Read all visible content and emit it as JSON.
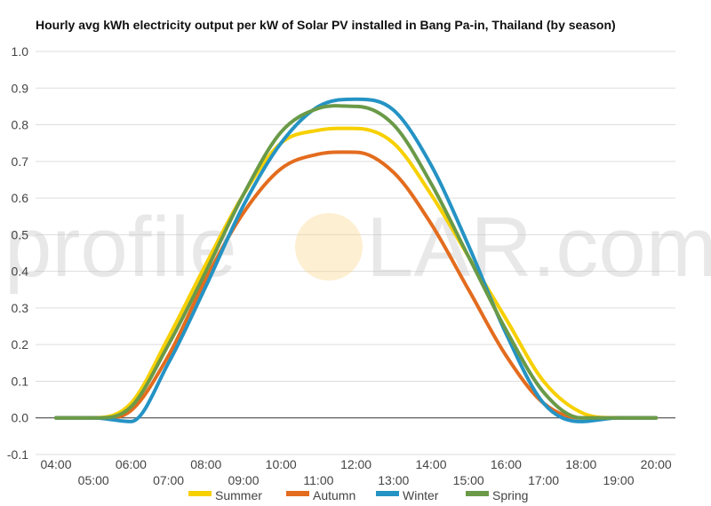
{
  "chart_data": {
    "type": "line",
    "title": "Hourly avg kWh electricity output per kW of Solar PV installed in Bang Pa-in, Thailand (by season)",
    "xlabel": "",
    "ylabel": "",
    "ylim": [
      -0.1,
      1.0
    ],
    "y_ticks": [
      "-0.1",
      "0.0",
      "0.1",
      "0.2",
      "0.3",
      "0.4",
      "0.5",
      "0.6",
      "0.7",
      "0.8",
      "0.9",
      "1.0"
    ],
    "categories": [
      "04:00",
      "05:00",
      "06:00",
      "07:00",
      "08:00",
      "09:00",
      "10:00",
      "11:00",
      "12:00",
      "13:00",
      "14:00",
      "15:00",
      "16:00",
      "17:00",
      "18:00",
      "19:00",
      "20:00"
    ],
    "grid": true,
    "legend_position": "bottom",
    "series": [
      {
        "name": "Summer",
        "color": "#f7d000",
        "values": [
          0.0,
          0.0,
          0.04,
          0.22,
          0.42,
          0.61,
          0.75,
          0.785,
          0.79,
          0.75,
          0.61,
          0.44,
          0.27,
          0.1,
          0.015,
          0.0,
          0.0
        ]
      },
      {
        "name": "Autumn",
        "color": "#e36c1e",
        "values": [
          0.0,
          0.0,
          0.02,
          0.17,
          0.38,
          0.56,
          0.68,
          0.72,
          0.725,
          0.67,
          0.53,
          0.35,
          0.17,
          0.04,
          0.0,
          0.0,
          0.0
        ]
      },
      {
        "name": "Winter",
        "color": "#2593c4",
        "values": [
          0.0,
          0.0,
          -0.01,
          0.15,
          0.36,
          0.58,
          0.75,
          0.85,
          0.87,
          0.84,
          0.69,
          0.47,
          0.23,
          0.04,
          -0.01,
          0.0,
          0.0
        ]
      },
      {
        "name": "Spring",
        "color": "#6a9a48",
        "values": [
          0.0,
          0.0,
          0.03,
          0.2,
          0.4,
          0.61,
          0.78,
          0.845,
          0.85,
          0.8,
          0.64,
          0.44,
          0.24,
          0.07,
          0.0,
          0.0,
          0.0
        ]
      }
    ]
  },
  "watermark": {
    "left": "profile",
    "right": "LAR.com"
  }
}
